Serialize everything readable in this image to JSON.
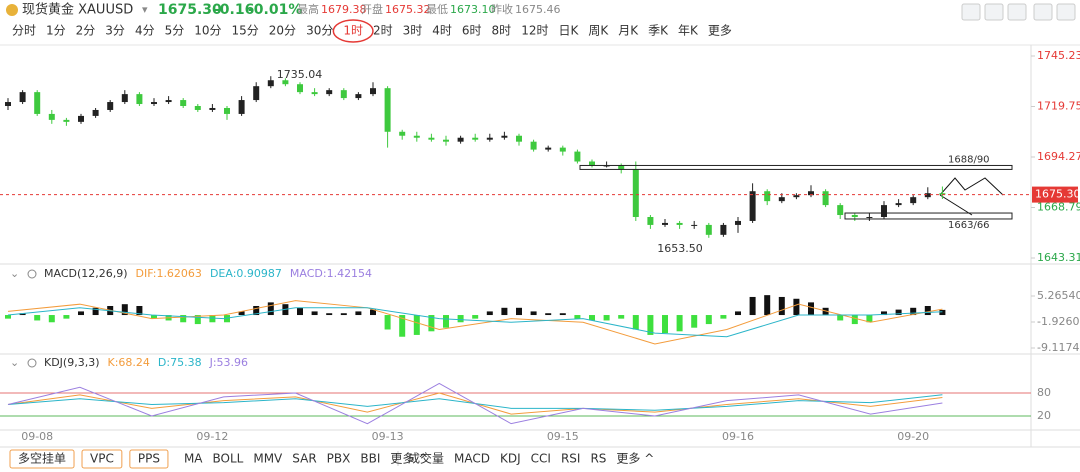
{
  "header": {
    "name": "现货黄金 XAUUSD",
    "price": "1675.30",
    "change": "-0.16",
    "change_pct": "-0.01%",
    "high_label": "最高",
    "high": "1679.38",
    "open_label": "开盘",
    "open": "1675.32",
    "low_label": "最低",
    "low": "1673.10",
    "prev_label": "昨收",
    "prev": "1675.46"
  },
  "periods": [
    "分时",
    "1分",
    "2分",
    "3分",
    "4分",
    "5分",
    "10分",
    "15分",
    "20分",
    "30分",
    "1时",
    "2时",
    "3时",
    "4时",
    "6时",
    "8时",
    "12时",
    "日K",
    "周K",
    "月K",
    "季K",
    "年K",
    "更多"
  ],
  "selected_period": "1时",
  "toolbar": {
    "buttons": [
      "多空挂单",
      "VPC",
      "PPS"
    ],
    "main_indicators": [
      "MA",
      "BOLL",
      "MMV",
      "SAR",
      "PBX",
      "BBI",
      "更多 ^"
    ],
    "sub_indicators": [
      "成交量",
      "MACD",
      "KDJ",
      "CCI",
      "RSI",
      "RS",
      "更多 ^"
    ]
  },
  "chart_data": [
    {
      "type": "candlestick",
      "up_color": "#222222",
      "down_color": "#3ec93e",
      "categories": [
        null,
        null,
        "09-08",
        null,
        null,
        null,
        null,
        null,
        null,
        null,
        null,
        null,
        null,
        null,
        "09-12",
        null,
        null,
        null,
        null,
        null,
        null,
        null,
        null,
        null,
        null,
        null,
        "09-13",
        null,
        null,
        null,
        null,
        null,
        null,
        null,
        null,
        null,
        null,
        null,
        "09-15",
        null,
        null,
        null,
        null,
        null,
        null,
        null,
        null,
        null,
        null,
        null,
        "09-16",
        null,
        null,
        null,
        null,
        null,
        null,
        null,
        null,
        null,
        null,
        null,
        "09-20",
        null,
        null
      ],
      "candles": [
        [
          1720,
          1724,
          1718,
          1722
        ],
        [
          1722,
          1728,
          1721,
          1727
        ],
        [
          1727,
          1728,
          1715,
          1716
        ],
        [
          1716,
          1718,
          1711,
          1713
        ],
        [
          1713,
          1714,
          1710,
          1712
        ],
        [
          1712,
          1716,
          1711,
          1715
        ],
        [
          1715,
          1719,
          1714,
          1718
        ],
        [
          1718,
          1723,
          1717,
          1722
        ],
        [
          1722,
          1728,
          1721,
          1726
        ],
        [
          1726,
          1727,
          1720,
          1721
        ],
        [
          1721,
          1724,
          1720,
          1722
        ],
        [
          1722,
          1725,
          1721,
          1723
        ],
        [
          1723,
          1724,
          1719,
          1720
        ],
        [
          1720,
          1721,
          1717,
          1718
        ],
        [
          1718,
          1721,
          1717,
          1719
        ],
        [
          1719,
          1720,
          1713,
          1716
        ],
        [
          1716,
          1725,
          1715,
          1723
        ],
        [
          1723,
          1732,
          1722,
          1730
        ],
        [
          1730,
          1735.04,
          1729,
          1733
        ],
        [
          1733,
          1734,
          1730,
          1731
        ],
        [
          1731,
          1732,
          1726,
          1727
        ],
        [
          1727,
          1729,
          1725,
          1726
        ],
        [
          1726,
          1729,
          1725,
          1728
        ],
        [
          1728,
          1729,
          1723,
          1724
        ],
        [
          1724,
          1727,
          1723,
          1726
        ],
        [
          1726,
          1732,
          1725,
          1729
        ],
        [
          1729,
          1730,
          1699,
          1707
        ],
        [
          1707,
          1708,
          1703,
          1705
        ],
        [
          1705,
          1707,
          1702,
          1704
        ],
        [
          1704,
          1706,
          1702,
          1703
        ],
        [
          1703,
          1705,
          1700,
          1702
        ],
        [
          1702,
          1705,
          1701,
          1704
        ],
        [
          1704,
          1706,
          1702,
          1703
        ],
        [
          1703,
          1706,
          1702,
          1704
        ],
        [
          1704,
          1707,
          1703,
          1705
        ],
        [
          1705,
          1706,
          1700,
          1702
        ],
        [
          1702,
          1703,
          1697,
          1698
        ],
        [
          1698,
          1700,
          1697,
          1699
        ],
        [
          1699,
          1700,
          1695,
          1697
        ],
        [
          1697,
          1698,
          1691,
          1692
        ],
        [
          1692,
          1693,
          1689,
          1690
        ],
        [
          1690,
          1692,
          1689,
          1690
        ],
        [
          1690,
          1691,
          1686,
          1688
        ],
        [
          1688,
          1692,
          1662,
          1664
        ],
        [
          1664,
          1665,
          1658,
          1660
        ],
        [
          1660,
          1663,
          1659,
          1661
        ],
        [
          1661,
          1662,
          1658,
          1660
        ],
        [
          1660,
          1662,
          1658,
          1660
        ],
        [
          1660,
          1661,
          1653.5,
          1655
        ],
        [
          1655,
          1661,
          1654,
          1660
        ],
        [
          1660,
          1664,
          1656,
          1662
        ],
        [
          1662,
          1681,
          1661,
          1677
        ],
        [
          1677,
          1678,
          1670,
          1672
        ],
        [
          1672,
          1676,
          1671,
          1674
        ],
        [
          1674,
          1676,
          1673,
          1675
        ],
        [
          1675,
          1680,
          1674,
          1677
        ],
        [
          1677,
          1678,
          1669,
          1670
        ],
        [
          1670,
          1671,
          1663,
          1665
        ],
        [
          1665,
          1666,
          1662,
          1664
        ],
        [
          1664,
          1666,
          1662,
          1664
        ],
        [
          1664,
          1672,
          1663,
          1670
        ],
        [
          1670,
          1673,
          1669,
          1671
        ],
        [
          1671,
          1675,
          1670,
          1674
        ],
        [
          1674,
          1679,
          1673,
          1676
        ],
        [
          1676,
          1679.38,
          1673.1,
          1675.3
        ]
      ],
      "ylim": [
        1643.31,
        1745.23
      ],
      "yticks": [
        1745.23,
        1719.75,
        1694.27,
        1668.79,
        1643.31
      ],
      "last_price": {
        "value": 1675.3,
        "label": "1675.30"
      },
      "last_color": "#e53935",
      "annotations": [
        {
          "value": 1735.04,
          "label": "1735.04"
        },
        {
          "value": 1653.5,
          "label": "1653.50"
        }
      ],
      "zones": [
        {
          "label": "1688/90",
          "low": 1688,
          "high": 1690
        },
        {
          "label": "1663/66",
          "low": 1663,
          "high": 1666
        }
      ]
    },
    {
      "type": "macd",
      "title": "MACD(12,26,9)",
      "legend": [
        "DIF:1.62063",
        "DEA:0.90987",
        "MACD:1.42154"
      ],
      "histogram": [
        -1,
        0.5,
        -1.5,
        -2,
        -1,
        1,
        2,
        2.5,
        3,
        2.5,
        -1,
        -1.5,
        -2,
        -2.5,
        -2,
        -2,
        1,
        2.5,
        3.5,
        3,
        2,
        1,
        0.5,
        0.5,
        1,
        1.5,
        -4,
        -6,
        -5.5,
        -4.5,
        -3.5,
        -2,
        -1,
        1,
        2,
        2,
        1,
        0.5,
        0.5,
        -1,
        -1.5,
        -1.5,
        -1,
        -4,
        -5.5,
        -5,
        -4.5,
        -3.5,
        -2.5,
        -1,
        1,
        5,
        5.5,
        5,
        4.5,
        3.5,
        2,
        -1.5,
        -2.5,
        -2,
        1,
        1.5,
        2,
        2.5,
        1.42154
      ],
      "series": [
        {
          "name": "DIF",
          "color": "#f39c3c",
          "values": [
            1,
            3,
            -1,
            0,
            4,
            2,
            -4,
            -1,
            -2,
            -8,
            -4,
            3,
            -2,
            1.62063
          ]
        },
        {
          "name": "DEA",
          "color": "#2bb5c9",
          "values": [
            0,
            2,
            0,
            -1,
            2,
            2,
            -1,
            -2,
            -1,
            -5,
            -6,
            0,
            0,
            0.90987
          ]
        }
      ],
      "legend_colors": [
        "#f39c3c",
        "#2bb5c9",
        "#9b7fe0"
      ],
      "ylim": [
        -9.11748,
        5.2654
      ],
      "yticks": [
        {
          "value": 5.2654,
          "label": "5.26540"
        },
        -1.92604,
        -9.11748
      ]
    },
    {
      "type": "kdj",
      "title": "KDJ(9,3,3)",
      "legend": [
        "K:68.24",
        "D:75.38",
        "J:53.96"
      ],
      "series": [
        {
          "name": "K",
          "color": "#f39c3c",
          "values": [
            50,
            75,
            40,
            60,
            70,
            30,
            80,
            25,
            40,
            30,
            50,
            65,
            45,
            68.24
          ]
        },
        {
          "name": "D",
          "color": "#2bb5c9",
          "values": [
            50,
            65,
            50,
            55,
            65,
            45,
            65,
            40,
            40,
            35,
            45,
            60,
            55,
            75.38
          ]
        },
        {
          "name": "J",
          "color": "#9b7fe0",
          "values": [
            50,
            95,
            20,
            70,
            80,
            0,
            105,
            0,
            40,
            20,
            60,
            75,
            25,
            53.96
          ]
        }
      ],
      "ylim": [
        -15,
        115
      ],
      "yticks": [
        80,
        20
      ],
      "tick_colors": [
        "#e57373",
        "#5cb85c"
      ]
    }
  ]
}
